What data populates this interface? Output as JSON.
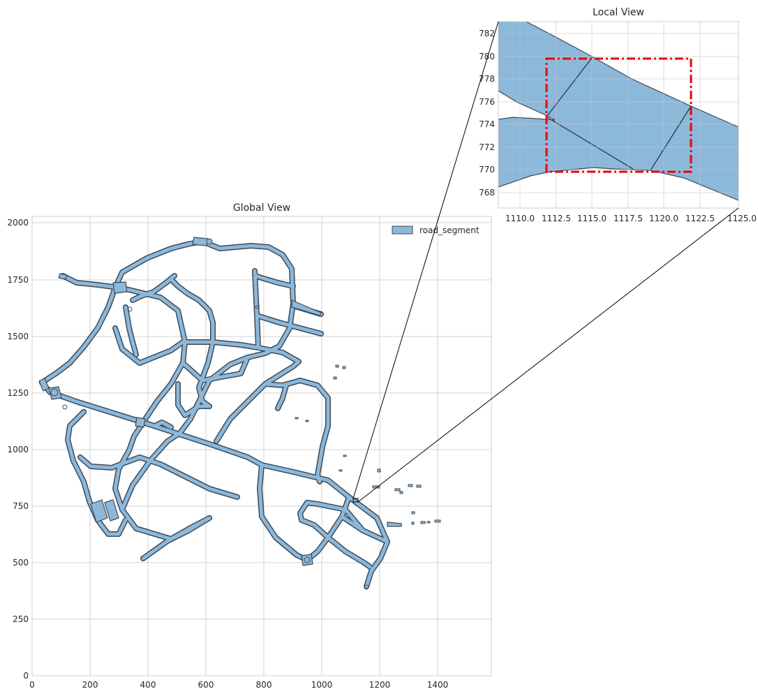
{
  "global_view": {
    "title": "Global View",
    "x_ticks": [
      "0",
      "200",
      "400",
      "600",
      "800",
      "1000",
      "1200",
      "1400"
    ],
    "y_ticks": [
      "0",
      "250",
      "500",
      "750",
      "1000",
      "1250",
      "1500",
      "1750",
      "2000"
    ],
    "xlim": [
      0,
      1580
    ],
    "ylim": [
      0,
      2020
    ],
    "legend": {
      "label": "road_segment",
      "placement": "top-right"
    },
    "grid": true,
    "focus_point": [
      1110,
      775
    ]
  },
  "local_view": {
    "title": "Local View",
    "x_ticks": [
      "1110.0",
      "1112.5",
      "1115.0",
      "1117.5",
      "1120.0",
      "1122.5",
      "1125.0"
    ],
    "y_ticks": [
      "768",
      "770",
      "772",
      "774",
      "776",
      "778",
      "780",
      "782"
    ],
    "xlim": [
      1108.3,
      1125.0
    ],
    "ylim": [
      766.2,
      783.2
    ],
    "grid": true,
    "highlight_box": {
      "x": [
        1111.9,
        1121.8
      ],
      "y": [
        769.8,
        779.8
      ],
      "color": "#ee0000",
      "style": "dash-dot"
    }
  },
  "colors": {
    "road_fill": "#8cb8da",
    "road_edge": "#3d4a57",
    "grid": "#d0d0d0",
    "connector": "#000000"
  }
}
